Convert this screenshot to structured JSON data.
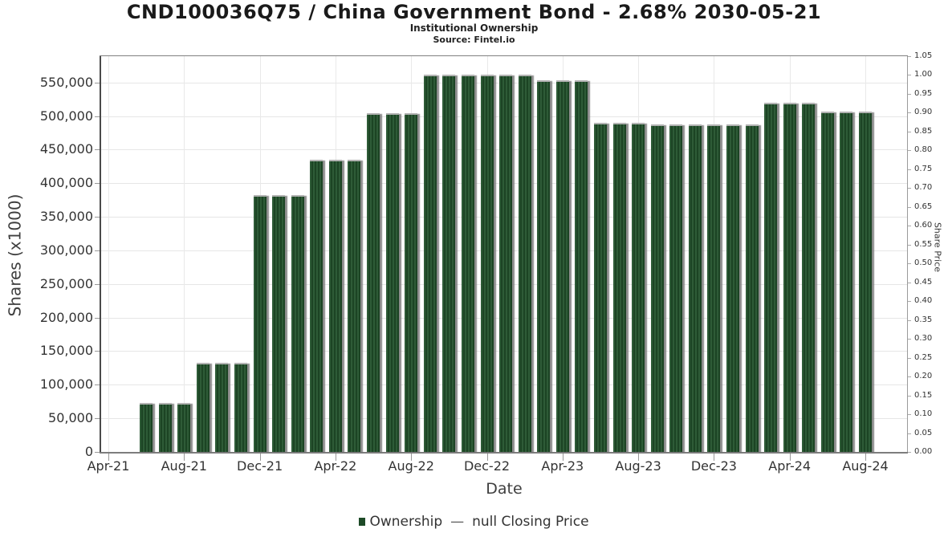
{
  "title": "CND100036Q75 / China Government Bond - 2.68% 2030-05-21",
  "subtitle": "Institutional Ownership",
  "source": "Source: Fintel.io",
  "axes": {
    "left": {
      "label": "Shares (x1000)",
      "ticks": [
        "0",
        "50,000",
        "100,000",
        "150,000",
        "200,000",
        "250,000",
        "300,000",
        "350,000",
        "400,000",
        "450,000",
        "500,000",
        "550,000"
      ]
    },
    "right": {
      "label": "Share Price",
      "ticks": [
        "0.00",
        "0.05",
        "0.10",
        "0.15",
        "0.20",
        "0.25",
        "0.30",
        "0.35",
        "0.40",
        "0.45",
        "0.50",
        "0.55",
        "0.60",
        "0.65",
        "0.70",
        "0.75",
        "0.80",
        "0.85",
        "0.90",
        "0.95",
        "1.00",
        "1.05"
      ]
    },
    "x": {
      "label": "Date",
      "ticks": [
        "Apr-21",
        "Aug-21",
        "Dec-21",
        "Apr-22",
        "Aug-22",
        "Dec-22",
        "Apr-23",
        "Aug-23",
        "Dec-23",
        "Apr-24",
        "Aug-24"
      ]
    }
  },
  "legend": {
    "ownership_label": "Ownership",
    "separator": "—",
    "price_label": "null Closing Price"
  },
  "colors": {
    "bar_stripe_dark": "#1c4424",
    "bar_stripe_light": "#2e5b37",
    "legend_marker": "#1d4a27",
    "grid": "#e6e6e6"
  },
  "chart_data": {
    "type": "bar",
    "title": "CND100036Q75 / China Government Bond - 2.68% 2030-05-21",
    "subtitle": "Institutional Ownership",
    "x": [
      "Jun-21",
      "Jul-21",
      "Aug-21",
      "Sep-21",
      "Oct-21",
      "Nov-21",
      "Dec-21",
      "Jan-22",
      "Feb-22",
      "Mar-22",
      "Apr-22",
      "May-22",
      "Jun-22",
      "Jul-22",
      "Aug-22",
      "Sep-22",
      "Oct-22",
      "Nov-22",
      "Dec-22",
      "Jan-23",
      "Feb-23",
      "Mar-23",
      "Apr-23",
      "May-23",
      "Jun-23",
      "Jul-23",
      "Aug-23",
      "Sep-23",
      "Oct-23",
      "Nov-23",
      "Dec-23",
      "Jan-24",
      "Feb-24",
      "Mar-24",
      "Apr-24",
      "May-24",
      "Jun-24",
      "Jul-24",
      "Aug-24"
    ],
    "series": [
      {
        "name": "Ownership",
        "values": [
          73000,
          73000,
          73000,
          133000,
          133000,
          133000,
          382000,
          382000,
          382000,
          435000,
          435000,
          435000,
          504000,
          504000,
          504000,
          561000,
          561000,
          561000,
          561000,
          561000,
          561000,
          553000,
          553000,
          553000,
          490000,
          490000,
          490000,
          488000,
          488000,
          488000,
          488000,
          488000,
          488000,
          520000,
          520000,
          520000,
          507000,
          507000,
          507000
        ]
      },
      {
        "name": "null Closing Price",
        "values": []
      }
    ],
    "xlabel": "Date",
    "ylabel_left": "Shares (x1000)",
    "ylim_left": [
      0,
      587500
    ],
    "ylabel_right": "Share Price",
    "ylim_right": [
      0,
      1.05
    ],
    "grid": true,
    "legend_position": "bottom",
    "note": "Closing price series is null; no price line is drawn"
  }
}
